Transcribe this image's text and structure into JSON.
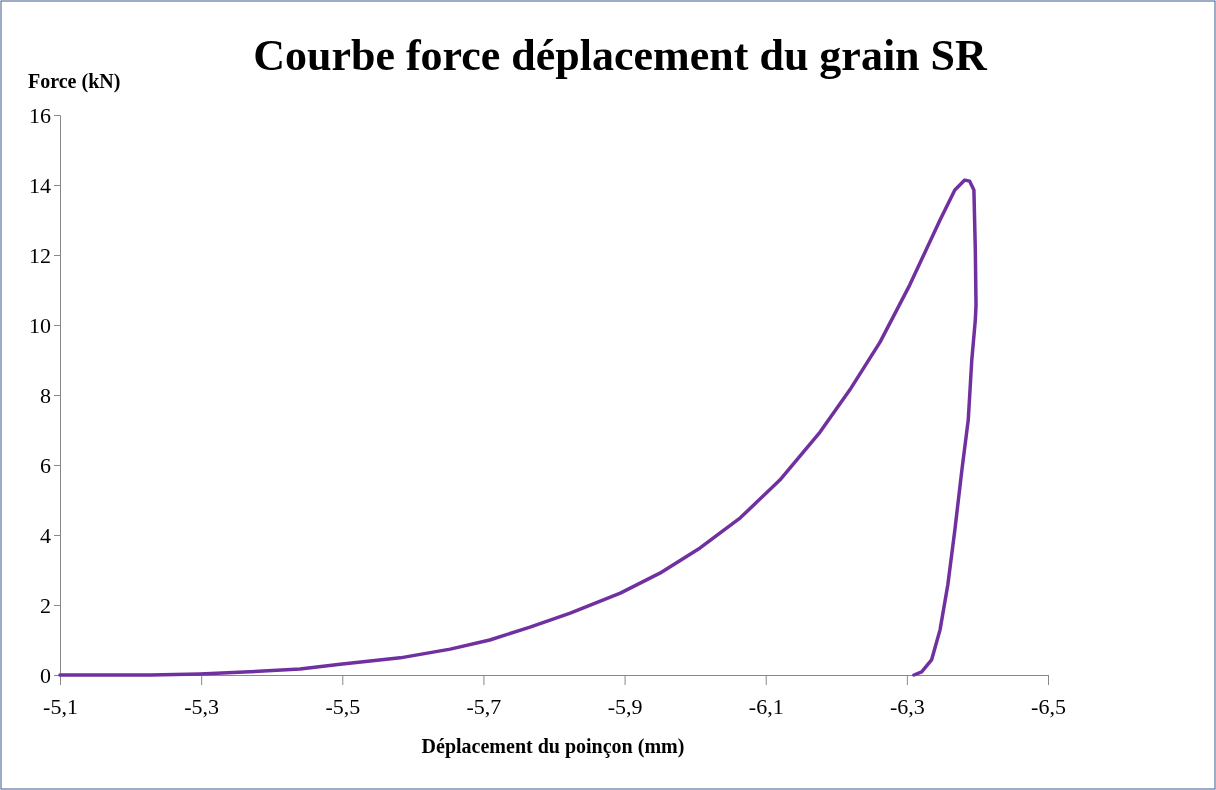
{
  "chart_data": {
    "type": "line",
    "title": "Courbe force déplacement du grain SR",
    "xlabel": "Déplacement du poinçon (mm)",
    "ylabel": "Force (kN)",
    "xlim": [
      -5.1,
      -6.5
    ],
    "xticks": [
      {
        "value": -5.1,
        "label": "-5,1"
      },
      {
        "value": -5.3,
        "label": "-5,3"
      },
      {
        "value": -5.5,
        "label": "-5,5"
      },
      {
        "value": -5.7,
        "label": "-5,7"
      },
      {
        "value": -5.9,
        "label": "-5,9"
      },
      {
        "value": -6.1,
        "label": "-6,1"
      },
      {
        "value": -6.3,
        "label": "-6,3"
      },
      {
        "value": -6.5,
        "label": "-6,5"
      }
    ],
    "ylim": [
      0,
      16
    ],
    "yticks": [
      0,
      2,
      4,
      6,
      8,
      10,
      12,
      14,
      16
    ],
    "grid": false,
    "marker": "none",
    "line_style": "solid",
    "x": [
      -5.1,
      -5.228,
      -5.298,
      -5.369,
      -5.44,
      -5.497,
      -5.582,
      -5.653,
      -5.709,
      -5.766,
      -5.823,
      -5.894,
      -5.95,
      -6.007,
      -6.064,
      -6.12,
      -6.177,
      -6.219,
      -6.262,
      -6.304,
      -6.347,
      -6.368,
      -6.382,
      -6.389,
      -6.395,
      -6.397,
      -6.398,
      -6.397,
      -6.392,
      -6.387,
      -6.378,
      -6.368,
      -6.358,
      -6.347,
      -6.335,
      -6.321,
      -6.31
    ],
    "series": [
      {
        "color": "#7030a0",
        "values": [
          0,
          0,
          0.03,
          0.09,
          0.17,
          0.31,
          0.49,
          0.74,
          1.0,
          1.37,
          1.77,
          2.34,
          2.91,
          3.63,
          4.49,
          5.57,
          6.94,
          8.14,
          9.51,
          11.14,
          13.0,
          13.86,
          14.14,
          14.11,
          13.86,
          12.14,
          10.57,
          10.14,
          9.0,
          7.29,
          5.86,
          4.14,
          2.57,
          1.29,
          0.43,
          0.09,
          0
        ]
      }
    ]
  }
}
